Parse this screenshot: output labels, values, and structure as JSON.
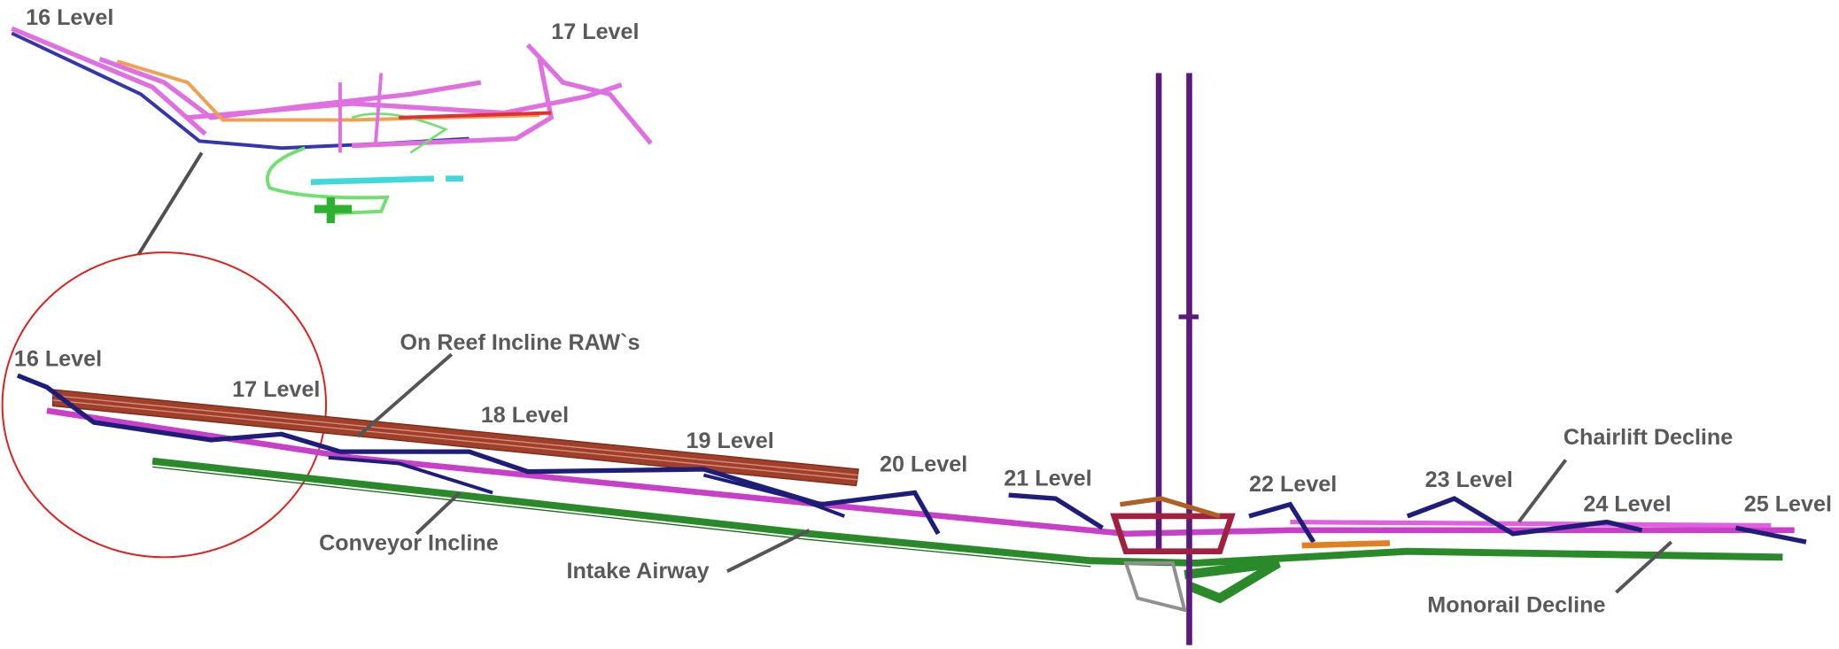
{
  "inset": {
    "labels": [
      "16 Level",
      "17 Level"
    ]
  },
  "main": {
    "levels": [
      "16 Level",
      "17 Level",
      "18 Level",
      "19 Level",
      "20 Level",
      "21 Level",
      "22 Level",
      "23 Level",
      "24 Level",
      "25 Level"
    ],
    "annotations": [
      "On Reef Incline RAW`s",
      "Conveyor Incline",
      "Intake Airway",
      "Chairlift Decline",
      "Monorail Decline"
    ]
  }
}
